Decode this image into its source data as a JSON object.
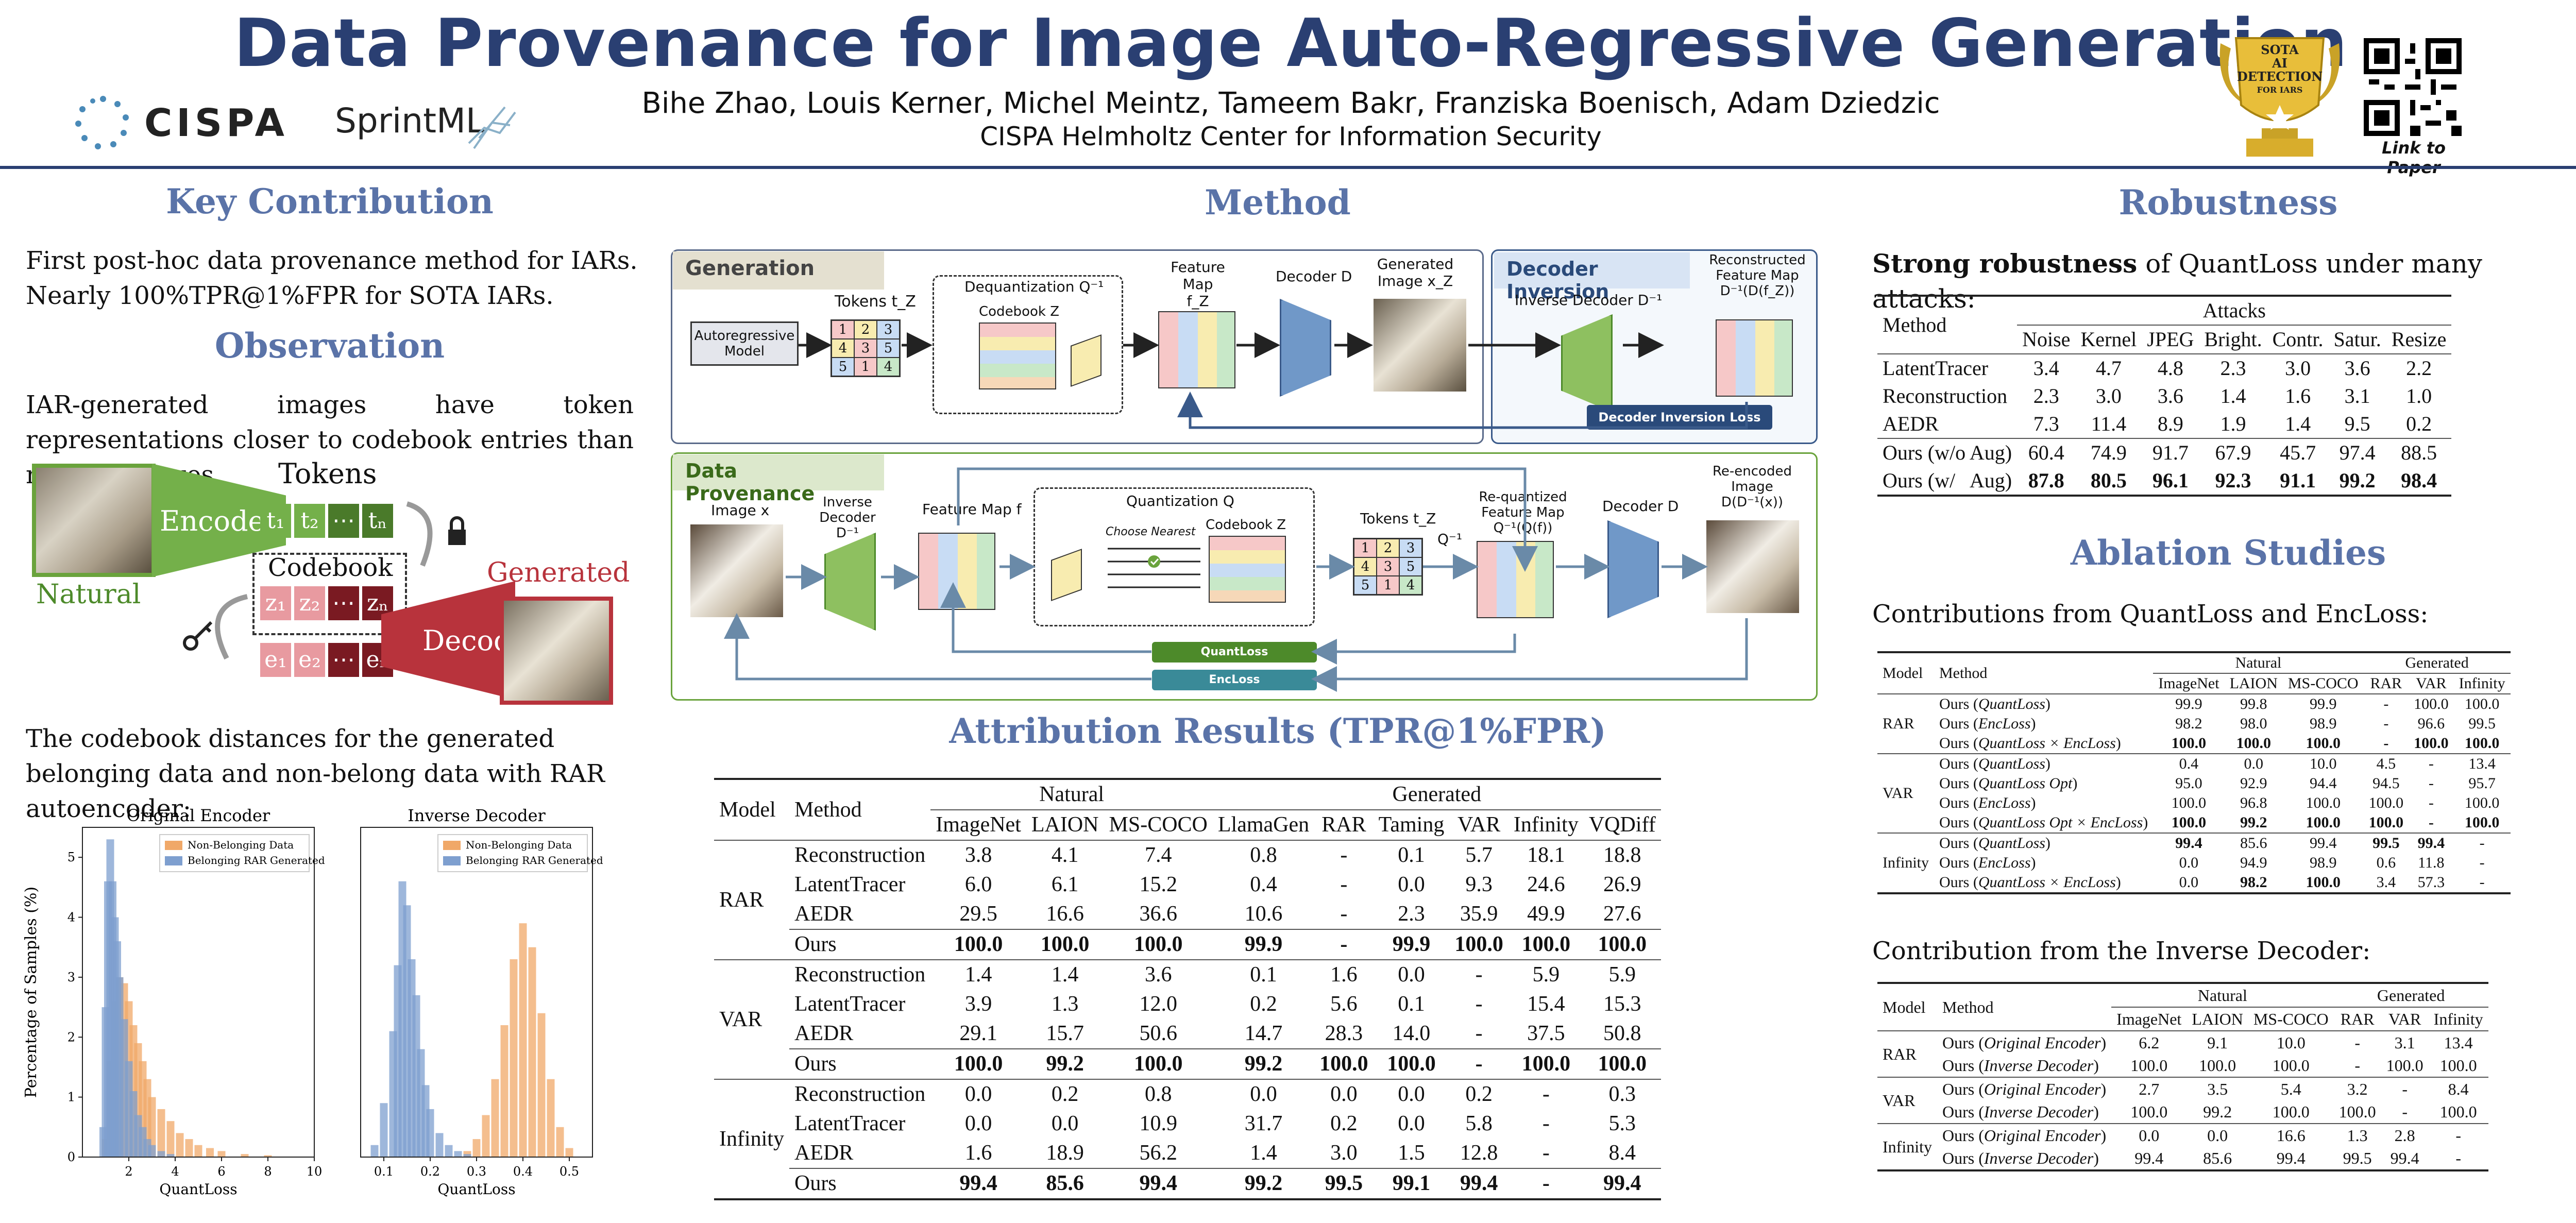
{
  "header": {
    "title": "Data Provenance for Image Auto-Regressive Generation",
    "authors": "Bihe Zhao, Louis Kerner, Michel Meintz, Tameem Bakr, Franziska Boenisch, Adam Dziedzic",
    "affiliation": "CISPA Helmholtz Center for Information Security",
    "logo_cispa": "CISPA",
    "logo_sprintml": "SprintML",
    "badge_text": [
      "SOTA",
      "AI",
      "DETECTION",
      "FOR IARS"
    ],
    "qr_caption": "Link to Paper"
  },
  "key_contribution": {
    "title": "Key Contribution",
    "lines": [
      "First post-hoc data provenance method for IARs.",
      "Nearly 100%TPR@1%FPR for SOTA IARs."
    ]
  },
  "observation": {
    "title": "Observation",
    "text": "IAR-generated images have token representations closer to codebook entries than natural images.",
    "diagram": {
      "natural": "Natural",
      "generated": "Generated",
      "encode": "Encode",
      "decode": "Decode",
      "tokens": "Tokens",
      "codebook": "Codebook",
      "t_tokens": [
        "t₁",
        "t₂",
        "⋯",
        "tₙ"
      ],
      "z_tokens": [
        "z₁",
        "z₂",
        "⋯",
        "zₙ"
      ],
      "e_tokens": [
        "e₁",
        "e₂",
        "⋯",
        "eₙ"
      ]
    },
    "hist_text": "The codebook distances for the generated belonging data and non-belong data with RAR autoencoder:"
  },
  "chart_data": [
    {
      "type": "bar",
      "title": "Original Encoder",
      "xlabel": "QuantLoss",
      "ylabel": "Percentage of Samples (%)",
      "xlim": [
        0,
        10
      ],
      "ylim": [
        0,
        5.5
      ],
      "xticks": [
        "2",
        "4",
        "6",
        "8",
        "10"
      ],
      "yticks": [
        "0",
        "1",
        "2",
        "3",
        "4",
        "5"
      ],
      "legend": "top-right",
      "series": [
        {
          "name": "Non-Belonging Data",
          "color": "#f0a868",
          "x": [
            1.0,
            1.2,
            1.4,
            1.6,
            1.8,
            2.0,
            2.2,
            2.4,
            2.6,
            2.8,
            3.0,
            3.4,
            3.8,
            4.2,
            4.6,
            5.0,
            5.5,
            6.0,
            7.0,
            8.0
          ],
          "values": [
            0.3,
            1.6,
            2.6,
            3.0,
            2.9,
            2.6,
            2.2,
            1.9,
            1.6,
            1.3,
            1.0,
            0.8,
            0.6,
            0.4,
            0.3,
            0.2,
            0.15,
            0.1,
            0.05,
            0.03
          ]
        },
        {
          "name": "Belonging RAR Generated",
          "color": "#7e9fcf",
          "x": [
            0.9,
            1.0,
            1.1,
            1.2,
            1.3,
            1.4,
            1.5,
            1.6,
            1.8,
            2.0,
            2.2,
            2.4,
            2.6,
            2.8,
            3.0,
            3.4,
            3.8
          ],
          "values": [
            0.5,
            2.5,
            4.6,
            5.3,
            4.6,
            4.0,
            3.6,
            3.0,
            2.3,
            1.6,
            1.1,
            0.7,
            0.5,
            0.3,
            0.2,
            0.1,
            0.05
          ]
        }
      ]
    },
    {
      "type": "bar",
      "title": "Inverse Decoder",
      "xlabel": "QuantLoss",
      "ylabel": "",
      "xlim": [
        0.05,
        0.55
      ],
      "ylim": [
        0,
        5.5
      ],
      "xticks": [
        "0.1",
        "0.2",
        "0.3",
        "0.4",
        "0.5"
      ],
      "legend": "top-right",
      "series": [
        {
          "name": "Non-Belonging Data",
          "color": "#f0a868",
          "x": [
            0.28,
            0.3,
            0.32,
            0.34,
            0.36,
            0.38,
            0.4,
            0.42,
            0.44,
            0.46,
            0.48,
            0.5
          ],
          "values": [
            0.1,
            0.3,
            0.7,
            1.3,
            2.2,
            3.3,
            3.9,
            3.5,
            2.4,
            1.3,
            0.5,
            0.15
          ]
        },
        {
          "name": "Belonging RAR Generated",
          "color": "#7e9fcf",
          "x": [
            0.08,
            0.1,
            0.12,
            0.13,
            0.14,
            0.15,
            0.16,
            0.17,
            0.18,
            0.19,
            0.2,
            0.22,
            0.24,
            0.26,
            0.28
          ],
          "values": [
            0.2,
            0.9,
            2.1,
            3.2,
            4.6,
            4.2,
            3.3,
            2.7,
            1.8,
            1.2,
            0.8,
            0.4,
            0.2,
            0.1,
            0.05
          ]
        }
      ]
    }
  ],
  "method": {
    "title": "Method",
    "generation": {
      "label": "Generation",
      "autoregressive_model": "Autoregressive Model",
      "tokens": "Tokens t_Z",
      "dequantization": "Dequantization Q⁻¹",
      "codebook": "Codebook Z",
      "feature_map": "Feature Map f_Z",
      "decoder": "Decoder D",
      "generated_image": "Generated Image x_Z"
    },
    "decoder_inversion": {
      "label": "Decoder Inversion",
      "inverse_decoder": "Inverse Decoder D⁻¹",
      "reconstructed": "Reconstructed Feature Map D⁻¹(D(f_Z))",
      "loss": "Decoder Inversion Loss"
    },
    "data_provenance": {
      "label": "Data Provenance",
      "image": "Image x",
      "inverse_decoder": "Inverse Decoder D⁻¹",
      "feature_map": "Feature Map f",
      "quantization": "Quantization Q",
      "choose_nearest": "Choose Nearest",
      "codebook": "Codebook Z",
      "tokens": "Tokens t_Z",
      "q_inv": "Q⁻¹",
      "requantized": "Re-quantized Feature Map Q⁻¹(Q(f))",
      "decoder": "Decoder D",
      "reencoded": "Re-encoded Image D(D⁻¹(x))",
      "quantloss": "QuantLoss",
      "encloss": "EncLoss"
    },
    "token_grid": [
      "1",
      "2",
      "3",
      "4",
      "3",
      "5",
      "5",
      "1",
      "4"
    ]
  },
  "attribution": {
    "title": "Attribution Results (TPR@1%FPR)",
    "group_natural": "Natural",
    "group_generated": "Generated",
    "col_model": "Model",
    "col_method": "Method",
    "columns": [
      "ImageNet",
      "LAION",
      "MS-COCO",
      "LlamaGen",
      "RAR",
      "Taming",
      "VAR",
      "Infinity",
      "VQDiff"
    ],
    "groups": [
      {
        "model": "RAR",
        "rows": [
          {
            "method": "Reconstruction",
            "values": [
              "3.8",
              "4.1",
              "7.4",
              "0.8",
              "-",
              "0.1",
              "5.7",
              "18.1",
              "18.8"
            ]
          },
          {
            "method": "LatentTracer",
            "values": [
              "6.0",
              "6.1",
              "15.2",
              "0.4",
              "-",
              "0.0",
              "9.3",
              "24.6",
              "26.9"
            ]
          },
          {
            "method": "AEDR",
            "values": [
              "29.5",
              "16.6",
              "36.6",
              "10.6",
              "-",
              "2.3",
              "35.9",
              "49.9",
              "27.6"
            ]
          },
          {
            "method": "Ours",
            "values": [
              "100.0",
              "100.0",
              "100.0",
              "99.9",
              "-",
              "99.9",
              "100.0",
              "100.0",
              "100.0"
            ],
            "bold": true
          }
        ]
      },
      {
        "model": "VAR",
        "rows": [
          {
            "method": "Reconstruction",
            "values": [
              "1.4",
              "1.4",
              "3.6",
              "0.1",
              "1.6",
              "0.0",
              "-",
              "5.9",
              "5.9"
            ]
          },
          {
            "method": "LatentTracer",
            "values": [
              "3.9",
              "1.3",
              "12.0",
              "0.2",
              "5.6",
              "0.1",
              "-",
              "15.4",
              "15.3"
            ]
          },
          {
            "method": "AEDR",
            "values": [
              "29.1",
              "15.7",
              "50.6",
              "14.7",
              "28.3",
              "14.0",
              "-",
              "37.5",
              "50.8"
            ]
          },
          {
            "method": "Ours",
            "values": [
              "100.0",
              "99.2",
              "100.0",
              "99.2",
              "100.0",
              "100.0",
              "-",
              "100.0",
              "100.0"
            ],
            "bold": true
          }
        ]
      },
      {
        "model": "Infinity",
        "rows": [
          {
            "method": "Reconstruction",
            "values": [
              "0.0",
              "0.2",
              "0.8",
              "0.0",
              "0.0",
              "0.0",
              "0.2",
              "-",
              "0.3"
            ]
          },
          {
            "method": "LatentTracer",
            "values": [
              "0.0",
              "0.0",
              "10.9",
              "31.7",
              "0.2",
              "0.0",
              "5.8",
              "-",
              "5.3"
            ]
          },
          {
            "method": "AEDR",
            "values": [
              "1.6",
              "18.9",
              "56.2",
              "1.4",
              "3.0",
              "1.5",
              "12.8",
              "-",
              "8.4"
            ]
          },
          {
            "method": "Ours",
            "values": [
              "99.4",
              "85.6",
              "99.4",
              "99.2",
              "99.5",
              "99.1",
              "99.4",
              "-",
              "99.4"
            ],
            "bold": true
          }
        ]
      }
    ]
  },
  "robustness": {
    "title": "Robustness",
    "subtitle_bold": "Strong robustness",
    "subtitle_rest": " of QuantLoss under many attacks:",
    "col_method": "Method",
    "group": "Attacks",
    "columns": [
      "Noise",
      "Kernel",
      "JPEG",
      "Bright.",
      "Contr.",
      "Satur.",
      "Resize"
    ],
    "rows": [
      {
        "method": "LatentTracer",
        "values": [
          "3.4",
          "4.7",
          "4.8",
          "2.3",
          "3.0",
          "3.6",
          "2.2"
        ]
      },
      {
        "method": "Reconstruction",
        "values": [
          "2.3",
          "3.0",
          "3.6",
          "1.4",
          "1.6",
          "3.1",
          "1.0"
        ]
      },
      {
        "method": "AEDR",
        "values": [
          "7.3",
          "11.4",
          "8.9",
          "1.9",
          "1.4",
          "9.5",
          "0.2"
        ]
      },
      {
        "method": "Ours (w/o Aug)",
        "values": [
          "60.4",
          "74.9",
          "91.7",
          "67.9",
          "45.7",
          "97.4",
          "88.5"
        ]
      },
      {
        "method": "Ours (w/   Aug)",
        "values": [
          "87.8",
          "80.5",
          "96.1",
          "92.3",
          "91.1",
          "99.2",
          "98.4"
        ],
        "bold": true
      }
    ]
  },
  "ablation": {
    "title": "Ablation Studies",
    "t1_caption": "Contributions from QuantLoss and EncLoss:",
    "t1_columns": [
      "ImageNet",
      "LAION",
      "MS-COCO",
      "RAR",
      "VAR",
      "Infinity"
    ],
    "group_natural": "Natural",
    "group_generated": "Generated",
    "col_model": "Model",
    "col_method": "Method",
    "t1_groups": [
      {
        "model": "RAR",
        "rows": [
          {
            "method": "Ours (QuantLoss)",
            "values": [
              "99.9",
              "99.8",
              "99.9",
              "-",
              "100.0",
              "100.0"
            ]
          },
          {
            "method": "Ours (EncLoss)",
            "values": [
              "98.2",
              "98.0",
              "98.9",
              "-",
              "96.6",
              "99.5"
            ]
          },
          {
            "method": "Ours (QuantLoss × EncLoss)",
            "values": [
              "100.0",
              "100.0",
              "100.0",
              "-",
              "100.0",
              "100.0"
            ],
            "bold": true
          }
        ]
      },
      {
        "model": "VAR",
        "rows": [
          {
            "method": "Ours (QuantLoss)",
            "values": [
              "0.4",
              "0.0",
              "10.0",
              "4.5",
              "-",
              "13.4"
            ]
          },
          {
            "method": "Ours (QuantLoss Opt)",
            "values": [
              "95.0",
              "92.9",
              "94.4",
              "94.5",
              "-",
              "95.7"
            ]
          },
          {
            "method": "Ours (EncLoss)",
            "values": [
              "100.0",
              "96.8",
              "100.0",
              "100.0",
              "-",
              "100.0"
            ]
          },
          {
            "method": "Ours (QuantLoss Opt × EncLoss)",
            "values": [
              "100.0",
              "99.2",
              "100.0",
              "100.0",
              "-",
              "100.0"
            ],
            "bold": true
          }
        ]
      },
      {
        "model": "Infinity",
        "rows": [
          {
            "method": "Ours (QuantLoss)",
            "values": [
              "99.4",
              "85.6",
              "99.4",
              "99.5",
              "99.4",
              "-"
            ]
          },
          {
            "method": "Ours (EncLoss)",
            "values": [
              "0.0",
              "94.9",
              "98.9",
              "0.6",
              "11.8",
              "-"
            ]
          },
          {
            "method": "Ours (QuantLoss × EncLoss)",
            "values": [
              "0.0",
              "98.2",
              "100.0",
              "3.4",
              "57.3",
              "-"
            ]
          }
        ]
      }
    ],
    "t2_caption": "Contribution from the Inverse Decoder:",
    "t2_groups": [
      {
        "model": "RAR",
        "rows": [
          {
            "method": "Ours (Original Encoder)",
            "values": [
              "6.2",
              "9.1",
              "10.0",
              "-",
              "3.1",
              "13.4"
            ]
          },
          {
            "method": "Ours (Inverse Decoder)",
            "values": [
              "100.0",
              "100.0",
              "100.0",
              "-",
              "100.0",
              "100.0"
            ]
          }
        ]
      },
      {
        "model": "VAR",
        "rows": [
          {
            "method": "Ours (Original Encoder)",
            "values": [
              "2.7",
              "3.5",
              "5.4",
              "3.2",
              "-",
              "8.4"
            ]
          },
          {
            "method": "Ours (Inverse Decoder)",
            "values": [
              "100.0",
              "99.2",
              "100.0",
              "100.0",
              "-",
              "100.0"
            ]
          }
        ]
      },
      {
        "model": "Infinity",
        "rows": [
          {
            "method": "Ours (Original Encoder)",
            "values": [
              "0.0",
              "0.0",
              "16.6",
              "1.3",
              "2.8",
              "-"
            ]
          },
          {
            "method": "Ours (Inverse Decoder)",
            "values": [
              "99.4",
              "85.6",
              "99.4",
              "99.5",
              "99.4",
              "-"
            ]
          }
        ]
      }
    ]
  }
}
